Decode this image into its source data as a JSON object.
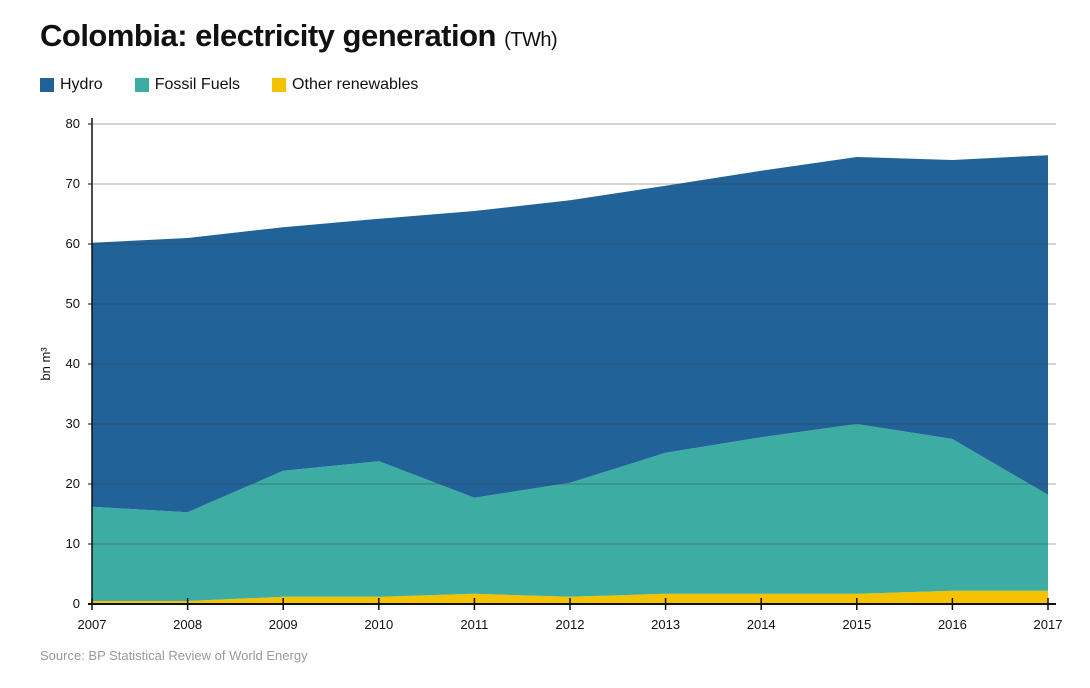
{
  "chart_data": {
    "type": "area",
    "stacked": true,
    "title": "Colombia: electricity generation",
    "title_unit": "(TWh)",
    "ylabel": "bn m³",
    "xlabel": "",
    "ylim": [
      0,
      80
    ],
    "yticks": [
      0,
      10,
      20,
      30,
      40,
      50,
      60,
      70,
      80
    ],
    "x": [
      2007,
      2008,
      2009,
      2010,
      2011,
      2012,
      2013,
      2014,
      2015,
      2016,
      2017
    ],
    "grid": true,
    "legend_position": "top-left",
    "series": [
      {
        "name": "Other renewables",
        "color": "#f5c200",
        "values": [
          0.5,
          0.5,
          1.2,
          1.2,
          1.7,
          1.2,
          1.7,
          1.7,
          1.7,
          2.2,
          2.2
        ]
      },
      {
        "name": "Fossil Fuels",
        "color": "#3dada3",
        "values": [
          15.7,
          14.8,
          21.0,
          22.6,
          16.0,
          19.0,
          23.5,
          26.1,
          28.3,
          25.3,
          16.0
        ]
      },
      {
        "name": "Hydro",
        "color": "#216399",
        "values": [
          44.0,
          45.7,
          40.6,
          40.4,
          47.8,
          47.1,
          44.5,
          44.4,
          44.5,
          46.5,
          56.6
        ]
      }
    ],
    "legend_order": [
      "Hydro",
      "Fossil Fuels",
      "Other renewables"
    ],
    "source": "Source: BP Statistical Review of World Energy"
  }
}
